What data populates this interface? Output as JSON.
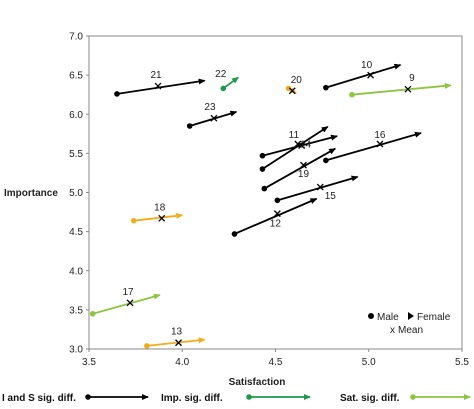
{
  "chart_data": {
    "type": "scatter",
    "title": "",
    "xlabel": "Satisfaction",
    "ylabel": "Importance",
    "xlim": [
      3.5,
      5.5
    ],
    "ylim": [
      3.0,
      7.0
    ],
    "xticks": [
      "3.5",
      "4.0",
      "4.5",
      "5.0",
      "5.5"
    ],
    "yticks": [
      "3.0",
      "3.5",
      "4.0",
      "4.5",
      "5.0",
      "5.5",
      "6.0",
      "6.5",
      "7.0"
    ],
    "grid": false,
    "legend": {
      "placement": "bottom-right",
      "male": "Male",
      "female": "Female",
      "mean": "Mean"
    },
    "groups": [
      {
        "name": "I and S sig. diff.",
        "color": "#000000"
      },
      {
        "name": "Imp. sig. diff.",
        "color": "#1a9a4a"
      },
      {
        "name": "Sat. sig. diff.",
        "color": "#8cc63f"
      },
      {
        "name": "",
        "color": "#f2ac1a"
      }
    ],
    "items": [
      {
        "label": "21",
        "group": 0,
        "male": [
          3.65,
          6.26
        ],
        "mean": [
          3.87,
          6.36
        ],
        "female": [
          4.12,
          6.43
        ]
      },
      {
        "label": "22",
        "group": 1,
        "male": [
          4.22,
          6.33
        ],
        "mean": null,
        "female": [
          4.3,
          6.47
        ]
      },
      {
        "label": "20",
        "group": 3,
        "male": [
          4.57,
          6.33
        ],
        "mean": [
          4.59,
          6.3
        ],
        "female": [
          4.61,
          6.27
        ]
      },
      {
        "label": "10",
        "group": 0,
        "male": [
          4.77,
          6.34
        ],
        "mean": [
          5.01,
          6.5
        ],
        "female": [
          5.17,
          6.63
        ]
      },
      {
        "label": "9",
        "group": 2,
        "male": [
          4.91,
          6.25
        ],
        "mean": [
          5.21,
          6.32
        ],
        "female": [
          5.44,
          6.37
        ]
      },
      {
        "label": "23",
        "group": 0,
        "male": [
          4.04,
          5.85
        ],
        "mean": [
          4.17,
          5.95
        ],
        "female": [
          4.29,
          6.03
        ]
      },
      {
        "label": "11",
        "group": 0,
        "male": [
          4.43,
          5.3
        ],
        "mean": [
          4.62,
          5.62
        ],
        "female": [
          4.78,
          5.84
        ]
      },
      {
        "label": "14",
        "group": 0,
        "male": [
          4.43,
          5.47
        ],
        "mean": [
          4.64,
          5.6
        ],
        "female": [
          4.83,
          5.72
        ]
      },
      {
        "label": "16",
        "group": 0,
        "male": [
          4.77,
          5.41
        ],
        "mean": [
          5.06,
          5.62
        ],
        "female": [
          5.28,
          5.76
        ]
      },
      {
        "label": "19",
        "group": 0,
        "male": [
          4.44,
          5.05
        ],
        "mean": [
          4.65,
          5.35
        ],
        "female": [
          4.82,
          5.56
        ]
      },
      {
        "label": "15",
        "group": 0,
        "male": [
          4.51,
          4.9
        ],
        "mean": [
          4.74,
          5.07
        ],
        "female": [
          4.94,
          5.2
        ]
      },
      {
        "label": "12",
        "group": 0,
        "male": [
          4.28,
          4.47
        ],
        "mean": [
          4.51,
          4.73
        ],
        "female": [
          4.72,
          4.92
        ]
      },
      {
        "label": "18",
        "group": 3,
        "male": [
          3.74,
          4.64
        ],
        "mean": [
          3.89,
          4.67
        ],
        "female": [
          4.0,
          4.71
        ]
      },
      {
        "label": "17",
        "group": 2,
        "male": [
          3.52,
          3.45
        ],
        "mean": [
          3.72,
          3.59
        ],
        "female": [
          3.88,
          3.69
        ]
      },
      {
        "label": "13",
        "group": 3,
        "male": [
          3.81,
          3.04
        ],
        "mean": [
          3.98,
          3.08
        ],
        "female": [
          4.12,
          3.12
        ]
      }
    ]
  }
}
